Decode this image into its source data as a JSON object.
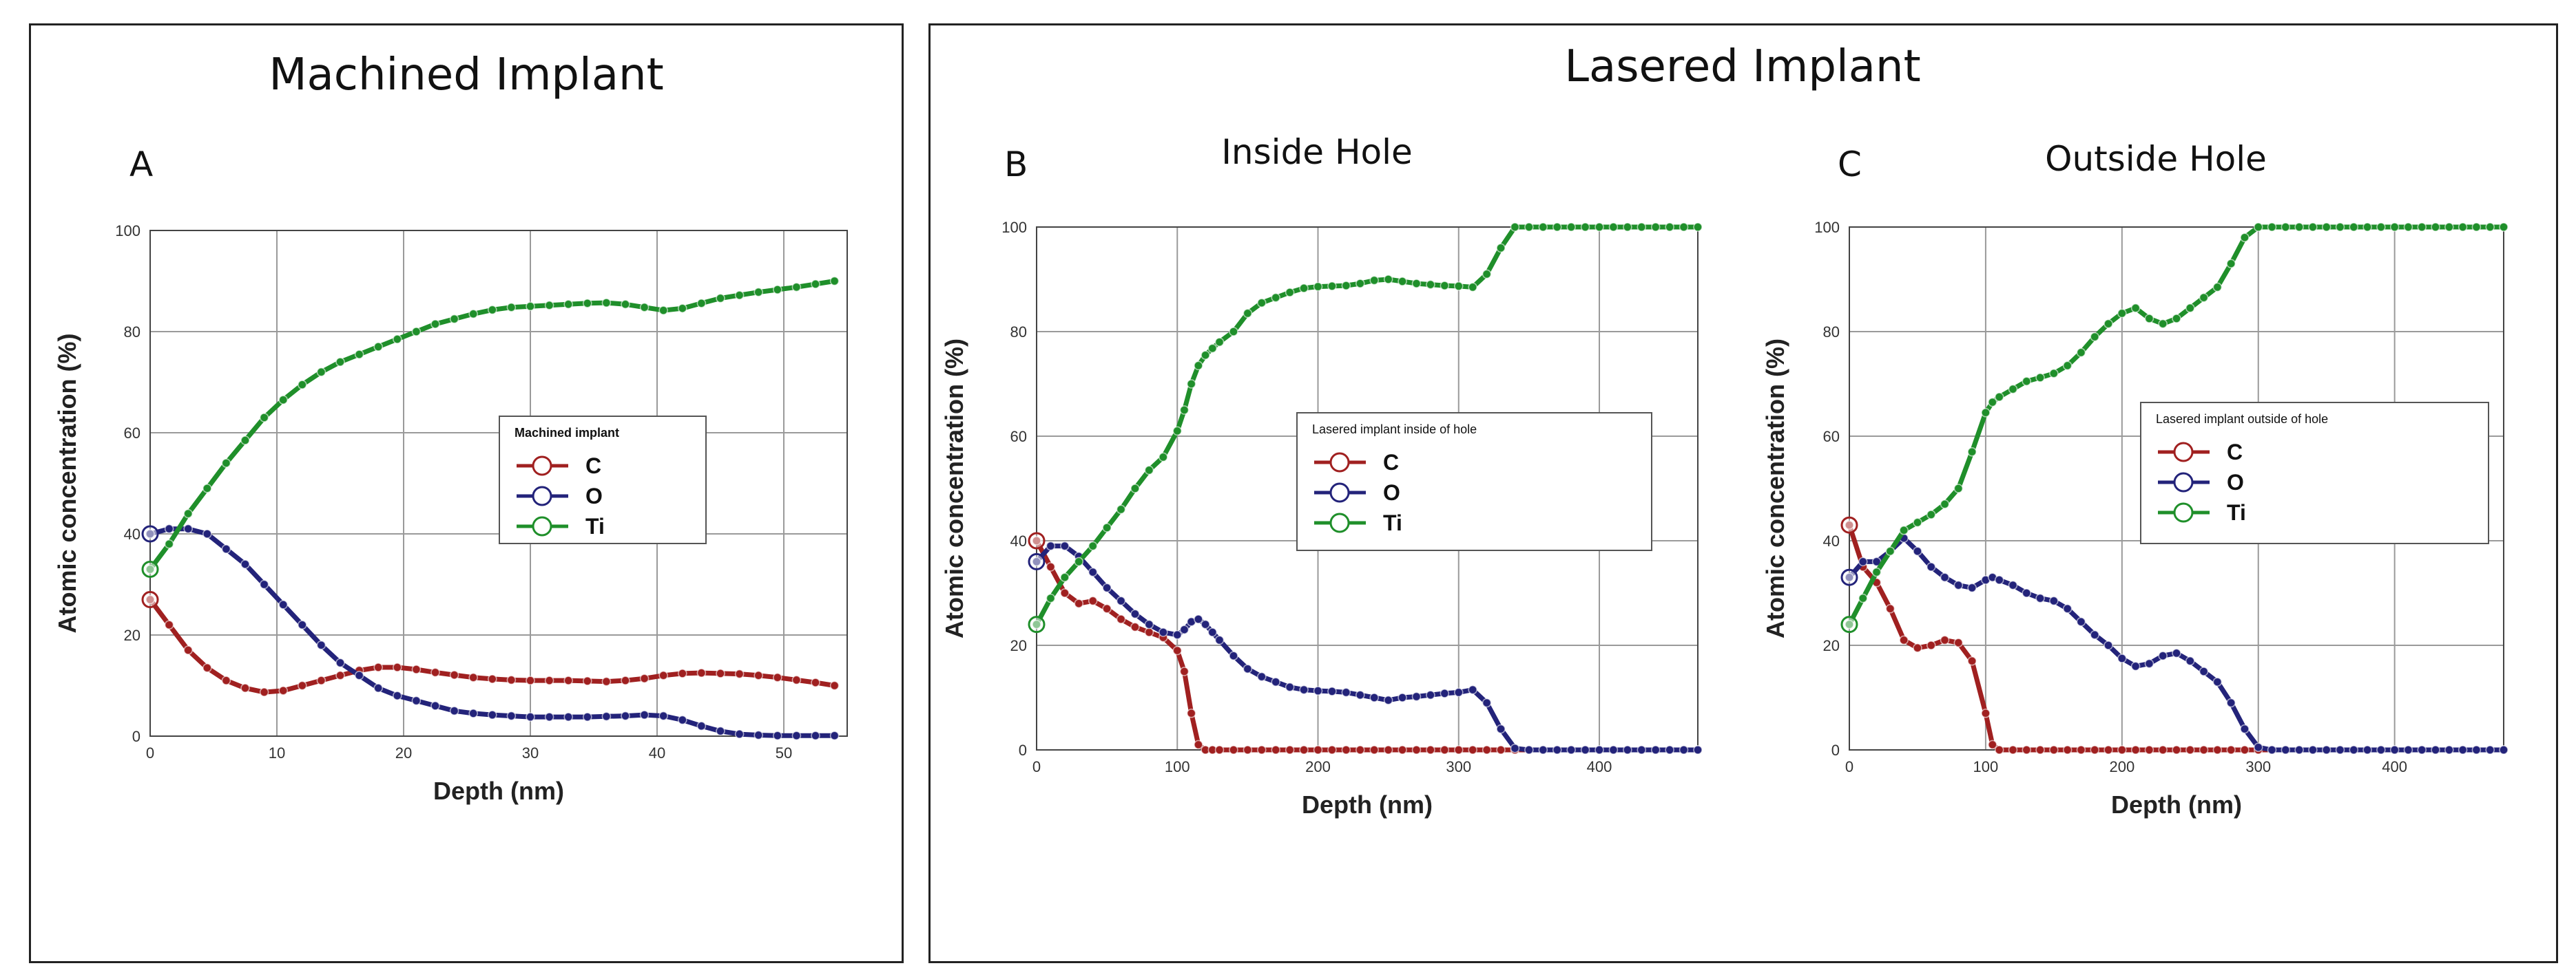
{
  "figure": {
    "frame_left_title": "Machined Implant",
    "frame_right_title": "Lasered Implant"
  },
  "colors": {
    "C": "#a02020",
    "O": "#23237a",
    "Ti": "#1f8f2a",
    "grid": "#9a9a9a"
  },
  "chart_data": [
    {
      "type": "line",
      "panel_letter": "A",
      "title": "",
      "xlabel": "Depth  (nm)",
      "ylabel": "Atomic concentration (%)",
      "xlim": [
        0,
        55
      ],
      "ylim": [
        0,
        100
      ],
      "xticks": [
        0,
        10,
        20,
        30,
        40,
        50
      ],
      "yticks": [
        0,
        20,
        40,
        60,
        80,
        100
      ],
      "grid": true,
      "legend_title": "Machined implant",
      "legend_position": "center-right",
      "series": [
        {
          "name": "C",
          "color": "#a02020",
          "x": [
            0,
            1.5,
            3,
            4.5,
            6,
            7.5,
            9,
            10.5,
            12,
            13.5,
            15,
            16.5,
            18,
            19.5,
            21,
            22.5,
            24,
            25.5,
            27,
            28.5,
            30,
            31.5,
            33,
            34.5,
            36,
            37.5,
            39,
            40.5,
            42,
            43.5,
            45,
            46.5,
            48,
            49.5,
            51,
            52.5,
            54
          ],
          "y": [
            27,
            22,
            17,
            13.5,
            11,
            9.5,
            8.7,
            9,
            10,
            11,
            12,
            13,
            13.6,
            13.6,
            13.2,
            12.6,
            12.1,
            11.6,
            11.3,
            11.1,
            11,
            11,
            11,
            10.9,
            10.8,
            11,
            11.4,
            12,
            12.4,
            12.5,
            12.4,
            12.3,
            12,
            11.6,
            11.1,
            10.6,
            10
          ]
        },
        {
          "name": "O",
          "color": "#23237a",
          "x": [
            0,
            1.5,
            3,
            4.5,
            6,
            7.5,
            9,
            10.5,
            12,
            13.5,
            15,
            16.5,
            18,
            19.5,
            21,
            22.5,
            24,
            25.5,
            27,
            28.5,
            30,
            31.5,
            33,
            34.5,
            36,
            37.5,
            39,
            40.5,
            42,
            43.5,
            45,
            46.5,
            48,
            49.5,
            51,
            52.5,
            54
          ],
          "y": [
            40,
            41,
            41,
            40,
            37,
            34,
            30,
            26,
            22,
            18,
            14.5,
            12,
            9.5,
            8,
            7,
            6,
            5,
            4.5,
            4.2,
            4,
            3.8,
            3.8,
            3.8,
            3.8,
            3.9,
            4,
            4.2,
            4,
            3.2,
            2,
            1,
            0.4,
            0.2,
            0.1,
            0.1,
            0.1,
            0.1
          ]
        },
        {
          "name": "Ti",
          "color": "#1f8f2a",
          "x": [
            0,
            1.5,
            3,
            4.5,
            6,
            7.5,
            9,
            10.5,
            12,
            13.5,
            15,
            16.5,
            18,
            19.5,
            21,
            22.5,
            24,
            25.5,
            27,
            28.5,
            30,
            31.5,
            33,
            34.5,
            36,
            37.5,
            39,
            40.5,
            42,
            43.5,
            45,
            46.5,
            48,
            49.5,
            51,
            52.5,
            54
          ],
          "y": [
            33,
            38,
            44,
            49,
            54,
            58.5,
            63,
            66.5,
            69.5,
            72,
            74,
            75.5,
            77,
            78.5,
            80,
            81.5,
            82.5,
            83.5,
            84.3,
            84.8,
            85,
            85.2,
            85.4,
            85.6,
            85.7,
            85.4,
            84.8,
            84.2,
            84.6,
            85.6,
            86.6,
            87.2,
            87.8,
            88.3,
            88.8,
            89.4,
            90
          ]
        }
      ]
    },
    {
      "type": "line",
      "panel_letter": "B",
      "title": "Inside Hole",
      "xlabel": "Depth  (nm)",
      "ylabel": "Atomic concentration (%)",
      "xlim": [
        0,
        470
      ],
      "ylim": [
        0,
        100
      ],
      "xticks": [
        0,
        100,
        200,
        300,
        400
      ],
      "yticks": [
        0,
        20,
        40,
        60,
        80,
        100
      ],
      "grid": true,
      "legend_title": "Lasered implant inside of  hole",
      "legend_position": "center-right",
      "series": [
        {
          "name": "C",
          "color": "#a02020",
          "x": [
            0,
            10,
            20,
            30,
            40,
            50,
            60,
            70,
            80,
            90,
            100,
            105,
            110,
            115,
            120,
            125,
            130,
            140,
            150,
            160,
            170,
            180,
            190,
            200,
            210,
            220,
            230,
            240,
            250,
            260,
            270,
            280,
            290,
            300,
            310,
            320,
            330,
            340,
            350,
            360,
            370,
            380,
            390,
            400,
            410,
            420,
            430,
            440,
            450,
            460,
            470
          ],
          "y": [
            40,
            35,
            30,
            28,
            28.5,
            27,
            25,
            23.5,
            22.5,
            21.5,
            19,
            15,
            7,
            1,
            0,
            0,
            0,
            0,
            0,
            0,
            0,
            0,
            0,
            0,
            0,
            0,
            0,
            0,
            0,
            0,
            0,
            0,
            0,
            0,
            0,
            0,
            0,
            0,
            0,
            0,
            0,
            0,
            0,
            0,
            0,
            0,
            0,
            0,
            0,
            0,
            0
          ]
        },
        {
          "name": "O",
          "color": "#23237a",
          "x": [
            0,
            10,
            20,
            30,
            40,
            50,
            60,
            70,
            80,
            90,
            100,
            105,
            110,
            115,
            120,
            125,
            130,
            140,
            150,
            160,
            170,
            180,
            190,
            200,
            210,
            220,
            230,
            240,
            250,
            260,
            270,
            280,
            290,
            300,
            310,
            320,
            330,
            340,
            350,
            360,
            370,
            380,
            390,
            400,
            410,
            420,
            430,
            440,
            450,
            460,
            470
          ],
          "y": [
            36,
            39,
            39,
            37,
            34,
            31,
            28.5,
            26,
            24,
            22.5,
            22,
            23,
            24.5,
            25,
            24,
            22.5,
            21,
            18,
            15.5,
            14,
            13,
            12,
            11.5,
            11.3,
            11.2,
            11,
            10.5,
            10,
            9.5,
            10,
            10.2,
            10.5,
            10.8,
            11,
            11.5,
            9,
            4,
            0.3,
            0,
            0,
            0,
            0,
            0,
            0,
            0,
            0,
            0,
            0,
            0,
            0,
            0
          ]
        },
        {
          "name": "Ti",
          "color": "#1f8f2a",
          "x": [
            0,
            10,
            20,
            30,
            40,
            50,
            60,
            70,
            80,
            90,
            100,
            105,
            110,
            115,
            120,
            125,
            130,
            140,
            150,
            160,
            170,
            180,
            190,
            200,
            210,
            220,
            230,
            240,
            250,
            260,
            270,
            280,
            290,
            300,
            310,
            320,
            330,
            340,
            350,
            360,
            370,
            380,
            390,
            400,
            410,
            420,
            430,
            440,
            450,
            460,
            470
          ],
          "y": [
            24,
            29,
            33,
            36,
            39,
            42.5,
            46,
            50,
            53.5,
            56,
            61,
            65,
            70,
            73.5,
            75.5,
            76.8,
            78,
            80,
            83.5,
            85.5,
            86.5,
            87.5,
            88.3,
            88.6,
            88.7,
            88.8,
            89.2,
            89.8,
            90,
            89.6,
            89.2,
            89,
            88.8,
            88.7,
            88.5,
            91,
            96,
            100,
            100,
            100,
            100,
            100,
            100,
            100,
            100,
            100,
            100,
            100,
            100,
            100,
            100
          ]
        }
      ]
    },
    {
      "type": "line",
      "panel_letter": "C",
      "title": "Outside Hole",
      "xlabel": "Depth  (nm)",
      "ylabel": "Atomic concentration (%)",
      "xlim": [
        0,
        480
      ],
      "ylim": [
        0,
        100
      ],
      "xticks": [
        0,
        100,
        200,
        300,
        400
      ],
      "yticks": [
        0,
        20,
        40,
        60,
        80,
        100
      ],
      "grid": true,
      "legend_title": "Lasered implant outside of  hole",
      "legend_position": "center-right",
      "series": [
        {
          "name": "C",
          "color": "#a02020",
          "x": [
            0,
            10,
            20,
            30,
            40,
            50,
            60,
            70,
            80,
            90,
            100,
            105,
            110,
            120,
            130,
            140,
            150,
            160,
            170,
            180,
            190,
            200,
            210,
            220,
            230,
            240,
            250,
            260,
            270,
            280,
            290,
            300,
            310,
            320,
            330,
            340,
            350,
            360,
            370,
            380,
            390,
            400,
            410,
            420,
            430,
            440,
            450,
            460,
            470,
            480
          ],
          "y": [
            43,
            35,
            32,
            27,
            21,
            19.5,
            20,
            21,
            20.5,
            17,
            7,
            1,
            0,
            0,
            0,
            0,
            0,
            0,
            0,
            0,
            0,
            0,
            0,
            0,
            0,
            0,
            0,
            0,
            0,
            0,
            0,
            0,
            0,
            0,
            0,
            0,
            0,
            0,
            0,
            0,
            0,
            0,
            0,
            0,
            0,
            0,
            0,
            0,
            0,
            0
          ]
        },
        {
          "name": "O",
          "color": "#23237a",
          "x": [
            0,
            10,
            20,
            30,
            40,
            50,
            60,
            70,
            80,
            90,
            100,
            105,
            110,
            120,
            130,
            140,
            150,
            160,
            170,
            180,
            190,
            200,
            210,
            220,
            230,
            240,
            250,
            260,
            270,
            280,
            290,
            300,
            310,
            320,
            330,
            340,
            350,
            360,
            370,
            380,
            390,
            400,
            410,
            420,
            430,
            440,
            450,
            460,
            470,
            480
          ],
          "y": [
            33,
            36,
            36,
            38,
            40.5,
            38,
            35,
            33,
            31.5,
            31,
            32.5,
            33,
            32.5,
            31.5,
            30,
            29,
            28.5,
            27,
            24.5,
            22,
            20,
            17.5,
            16,
            16.5,
            18,
            18.5,
            17,
            15,
            13,
            9,
            4,
            0.5,
            0,
            0,
            0,
            0,
            0,
            0,
            0,
            0,
            0,
            0,
            0,
            0,
            0,
            0,
            0,
            0,
            0,
            0
          ]
        },
        {
          "name": "Ti",
          "color": "#1f8f2a",
          "x": [
            0,
            10,
            20,
            30,
            40,
            50,
            60,
            70,
            80,
            90,
            100,
            105,
            110,
            120,
            130,
            140,
            150,
            160,
            170,
            180,
            190,
            200,
            210,
            220,
            230,
            240,
            250,
            260,
            270,
            280,
            290,
            300,
            310,
            320,
            330,
            340,
            350,
            360,
            370,
            380,
            390,
            400,
            410,
            420,
            430,
            440,
            450,
            460,
            470,
            480
          ],
          "y": [
            24,
            29,
            34,
            38,
            42,
            43.5,
            45,
            47,
            50,
            57,
            64.5,
            66.5,
            67.5,
            69,
            70.5,
            71.2,
            72,
            73.5,
            76,
            79,
            81.5,
            83.5,
            84.5,
            82.5,
            81.5,
            82.5,
            84.5,
            86.5,
            88.5,
            93,
            98,
            100,
            100,
            100,
            100,
            100,
            100,
            100,
            100,
            100,
            100,
            100,
            100,
            100,
            100,
            100,
            100,
            100,
            100,
            100
          ]
        }
      ]
    }
  ]
}
